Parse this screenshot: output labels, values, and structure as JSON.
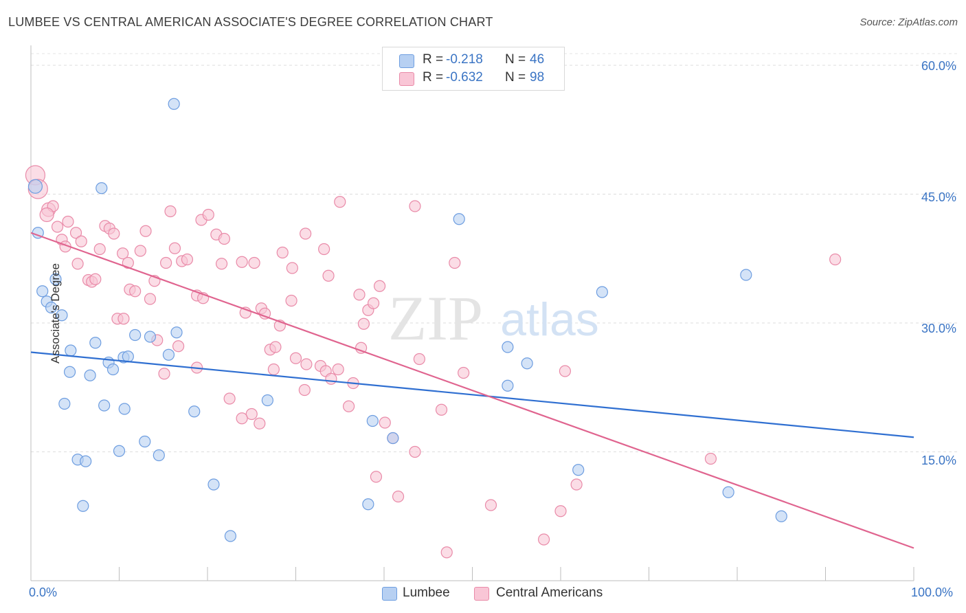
{
  "title": "LUMBEE VS CENTRAL AMERICAN ASSOCIATE'S DEGREE CORRELATION CHART",
  "source": "Source: ZipAtlas.com",
  "watermark": {
    "zip": "ZIP",
    "atlas": "atlas"
  },
  "legend": {
    "rows": [
      {
        "r_label": "R =",
        "r_value": "-0.218",
        "n_label": "N =",
        "n_value": "46",
        "fill": "#b7d0f2",
        "stroke": "#6d9de0"
      },
      {
        "r_label": "R =",
        "r_value": "-0.632",
        "n_label": "N =",
        "n_value": "98",
        "fill": "#f9c6d6",
        "stroke": "#e98aa8"
      }
    ]
  },
  "chart_data": {
    "type": "scatter",
    "title": "LUMBEE VS CENTRAL AMERICAN ASSOCIATE'S DEGREE CORRELATION CHART",
    "xlabel": "",
    "ylabel": "Associate's Degree",
    "xlim": [
      0,
      100
    ],
    "ylim": [
      0,
      62
    ],
    "x_tick_labels": [
      "0.0%",
      "100.0%"
    ],
    "y_ticks": [
      15,
      30,
      45,
      60
    ],
    "y_tick_labels": [
      "15.0%",
      "30.0%",
      "45.0%",
      "60.0%"
    ],
    "grid": true,
    "legend_position": "bottom",
    "series": [
      {
        "name": "Lumbee",
        "color": "#6d9de0",
        "fill": "#b7d0f2",
        "trend": {
          "x": [
            0,
            100
          ],
          "y": [
            26.6,
            16.7
          ],
          "color": "#2f6fd1"
        },
        "points": [
          [
            0.5,
            45.9,
            10
          ],
          [
            0.8,
            40.5,
            8
          ],
          [
            16.2,
            55.5,
            8
          ],
          [
            8.0,
            45.7,
            8
          ],
          [
            48.5,
            42.1,
            8
          ],
          [
            81.0,
            35.6,
            8
          ],
          [
            1.3,
            33.7,
            8
          ],
          [
            1.8,
            32.5,
            8
          ],
          [
            2.3,
            31.8,
            8
          ],
          [
            2.8,
            35.1,
            8
          ],
          [
            3.5,
            30.9,
            8
          ],
          [
            4.5,
            26.8,
            8
          ],
          [
            7.3,
            27.7,
            8
          ],
          [
            11.8,
            28.6,
            8
          ],
          [
            13.5,
            28.4,
            8
          ],
          [
            16.5,
            28.9,
            8
          ],
          [
            10.5,
            26.0,
            8
          ],
          [
            11.0,
            26.1,
            8
          ],
          [
            8.8,
            25.4,
            8
          ],
          [
            9.3,
            24.6,
            8
          ],
          [
            15.6,
            26.3,
            8
          ],
          [
            4.4,
            24.3,
            8
          ],
          [
            6.7,
            23.9,
            8
          ],
          [
            3.8,
            20.6,
            8
          ],
          [
            8.3,
            20.4,
            8
          ],
          [
            10.6,
            20.0,
            8
          ],
          [
            18.5,
            19.7,
            8
          ],
          [
            26.8,
            21.0,
            8
          ],
          [
            38.7,
            18.6,
            8
          ],
          [
            64.7,
            33.6,
            8
          ],
          [
            54.0,
            27.2,
            8
          ],
          [
            56.2,
            25.3,
            8
          ],
          [
            54.0,
            22.7,
            8
          ],
          [
            12.9,
            16.2,
            8
          ],
          [
            10.0,
            15.1,
            8
          ],
          [
            14.5,
            14.6,
            8
          ],
          [
            5.3,
            14.1,
            8
          ],
          [
            6.2,
            13.9,
            8
          ],
          [
            41.0,
            16.6,
            8
          ],
          [
            62.0,
            12.9,
            8
          ],
          [
            20.7,
            11.2,
            8
          ],
          [
            79.0,
            10.3,
            8
          ],
          [
            5.9,
            8.7,
            8
          ],
          [
            38.2,
            8.9,
            8
          ],
          [
            85.0,
            7.5,
            8
          ],
          [
            22.6,
            5.2,
            8
          ]
        ]
      },
      {
        "name": "Central Americans",
        "color": "#e98aa8",
        "fill": "#f9c6d6",
        "trend": {
          "x": [
            0,
            100
          ],
          "y": [
            40.5,
            3.8
          ],
          "color": "#e0648f"
        },
        "points": [
          [
            0.5,
            47.2,
            14
          ],
          [
            0.8,
            45.6,
            14
          ],
          [
            2.0,
            43.2,
            10
          ],
          [
            2.5,
            43.6,
            8
          ],
          [
            1.8,
            42.6,
            10
          ],
          [
            3.0,
            41.2,
            8
          ],
          [
            4.2,
            41.8,
            8
          ],
          [
            5.1,
            40.5,
            8
          ],
          [
            3.5,
            39.7,
            8
          ],
          [
            3.9,
            38.9,
            8
          ],
          [
            5.7,
            39.5,
            8
          ],
          [
            8.4,
            41.3,
            8
          ],
          [
            8.9,
            41.0,
            8
          ],
          [
            9.4,
            40.4,
            8
          ],
          [
            7.8,
            38.6,
            8
          ],
          [
            10.4,
            38.1,
            8
          ],
          [
            11.0,
            37.0,
            8
          ],
          [
            12.4,
            38.4,
            8
          ],
          [
            13.0,
            40.7,
            8
          ],
          [
            15.8,
            43.0,
            8
          ],
          [
            19.3,
            42.0,
            8
          ],
          [
            20.1,
            42.6,
            8
          ],
          [
            21.0,
            40.3,
            8
          ],
          [
            21.9,
            39.8,
            8
          ],
          [
            16.3,
            38.7,
            8
          ],
          [
            17.1,
            37.2,
            8
          ],
          [
            17.7,
            37.4,
            8
          ],
          [
            15.3,
            37.0,
            8
          ],
          [
            21.6,
            36.9,
            8
          ],
          [
            23.9,
            37.1,
            8
          ],
          [
            25.3,
            37.0,
            8
          ],
          [
            28.5,
            38.2,
            8
          ],
          [
            29.6,
            36.4,
            8
          ],
          [
            31.1,
            40.4,
            8
          ],
          [
            33.2,
            38.6,
            8
          ],
          [
            35.0,
            44.1,
            8
          ],
          [
            43.5,
            43.6,
            8
          ],
          [
            33.7,
            35.5,
            8
          ],
          [
            37.2,
            33.3,
            8
          ],
          [
            39.5,
            34.3,
            8
          ],
          [
            48.0,
            37.0,
            8
          ],
          [
            91.1,
            37.4,
            8
          ],
          [
            5.3,
            36.9,
            8
          ],
          [
            6.5,
            35.0,
            8
          ],
          [
            6.9,
            34.8,
            8
          ],
          [
            7.3,
            35.1,
            8
          ],
          [
            11.2,
            33.9,
            8
          ],
          [
            11.8,
            33.7,
            8
          ],
          [
            14.0,
            34.9,
            8
          ],
          [
            13.5,
            32.8,
            8
          ],
          [
            18.8,
            33.2,
            8
          ],
          [
            19.5,
            32.9,
            8
          ],
          [
            24.3,
            31.2,
            8
          ],
          [
            26.1,
            31.7,
            8
          ],
          [
            26.5,
            31.1,
            8
          ],
          [
            29.5,
            32.6,
            8
          ],
          [
            38.2,
            31.5,
            8
          ],
          [
            38.8,
            32.3,
            8
          ],
          [
            9.8,
            30.5,
            8
          ],
          [
            14.3,
            28.0,
            8
          ],
          [
            16.7,
            27.3,
            8
          ],
          [
            28.2,
            29.7,
            8
          ],
          [
            37.7,
            29.9,
            8
          ],
          [
            27.1,
            26.9,
            8
          ],
          [
            27.7,
            27.2,
            8
          ],
          [
            37.4,
            27.1,
            8
          ],
          [
            30.0,
            25.9,
            8
          ],
          [
            31.2,
            25.2,
            8
          ],
          [
            32.8,
            25.0,
            8
          ],
          [
            33.4,
            24.4,
            8
          ],
          [
            34.0,
            23.5,
            8
          ],
          [
            34.8,
            24.6,
            8
          ],
          [
            27.5,
            24.6,
            8
          ],
          [
            18.8,
            24.8,
            8
          ],
          [
            15.1,
            24.1,
            8
          ],
          [
            36.5,
            23.0,
            8
          ],
          [
            44.0,
            25.8,
            8
          ],
          [
            49.0,
            24.2,
            8
          ],
          [
            60.5,
            24.4,
            8
          ],
          [
            31.0,
            22.2,
            8
          ],
          [
            22.5,
            21.2,
            8
          ],
          [
            25.0,
            19.4,
            8
          ],
          [
            23.9,
            18.9,
            8
          ],
          [
            25.9,
            18.3,
            8
          ],
          [
            36.0,
            20.3,
            8
          ],
          [
            46.5,
            19.9,
            8
          ],
          [
            40.1,
            18.4,
            8
          ],
          [
            41.0,
            16.6,
            8
          ],
          [
            43.5,
            15.0,
            8
          ],
          [
            77.0,
            14.2,
            8
          ],
          [
            39.1,
            12.1,
            8
          ],
          [
            61.8,
            11.2,
            8
          ],
          [
            41.6,
            9.8,
            8
          ],
          [
            52.1,
            8.8,
            8
          ],
          [
            60.0,
            8.1,
            8
          ],
          [
            58.1,
            4.8,
            8
          ],
          [
            47.1,
            3.3,
            8
          ],
          [
            10.5,
            30.5,
            8
          ]
        ]
      }
    ]
  }
}
